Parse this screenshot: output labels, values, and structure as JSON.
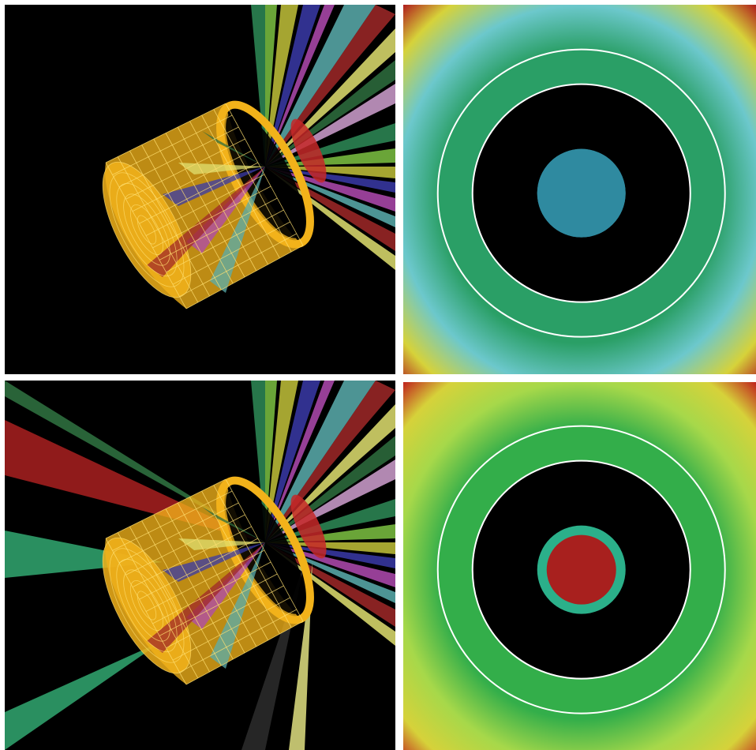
{
  "panels": [
    {
      "id": "p-tl",
      "content": "3d-cylinder-beams",
      "extra_beams": false
    },
    {
      "id": "p-tr",
      "content": "radial-map",
      "field": "#2a9f66",
      "corner": "#b0201e",
      "glow": "#6cc8cc",
      "core": "#2f8aa0",
      "core_edge": "#2f8aa0"
    },
    {
      "id": "p-bl",
      "content": "3d-cylinder-beams",
      "extra_beams": true
    },
    {
      "id": "p-br",
      "content": "radial-map",
      "field": "#33ae4a",
      "corner": "#c0251e",
      "glow": "#a6d84a",
      "core": "#a8201e",
      "core_edge": "#2bb08a"
    }
  ],
  "beam_colors": [
    "#2e8b57",
    "#7cc242",
    "#c2c23a",
    "#3a3aa8",
    "#b04ab0",
    "#5aaeae",
    "#a02828",
    "#e0e070",
    "#2e6e3e",
    "#d0a0d0"
  ],
  "colors": {
    "cylinder": "#f2b21a",
    "cylinder_mesh": "#ffe070",
    "ring_line": "#ffffff",
    "hole": "#000000"
  }
}
